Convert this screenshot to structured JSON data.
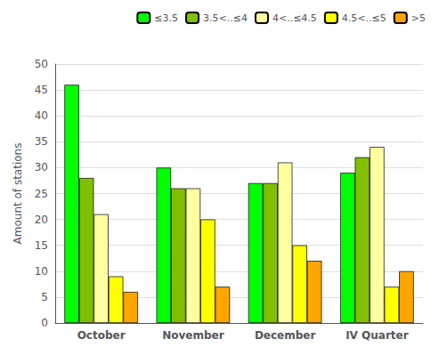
{
  "chart_data": {
    "type": "bar",
    "ylabel": "Amount of stations",
    "categories": [
      "October",
      "November",
      "December",
      "IV Quarter"
    ],
    "series": [
      {
        "name": "≤3.5",
        "color": "#00FF00",
        "values": [
          46,
          30,
          27,
          29
        ]
      },
      {
        "name": "3.5<..≤4",
        "color": "#80C000",
        "values": [
          28,
          26,
          27,
          32
        ]
      },
      {
        "name": "4<..≤4.5",
        "color": "#FFFFA0",
        "values": [
          21,
          26,
          31,
          34
        ]
      },
      {
        "name": "4.5<..≤5",
        "color": "#FFFF00",
        "values": [
          9,
          20,
          15,
          7
        ]
      },
      {
        "name": ">5",
        "color": "#FFA500",
        "values": [
          6,
          7,
          12,
          10
        ]
      }
    ],
    "ylim": [
      0,
      50
    ],
    "yticks": [
      0,
      5,
      10,
      15,
      20,
      25,
      30,
      35,
      40,
      45,
      50
    ],
    "grid": true,
    "legend": "upper right"
  }
}
